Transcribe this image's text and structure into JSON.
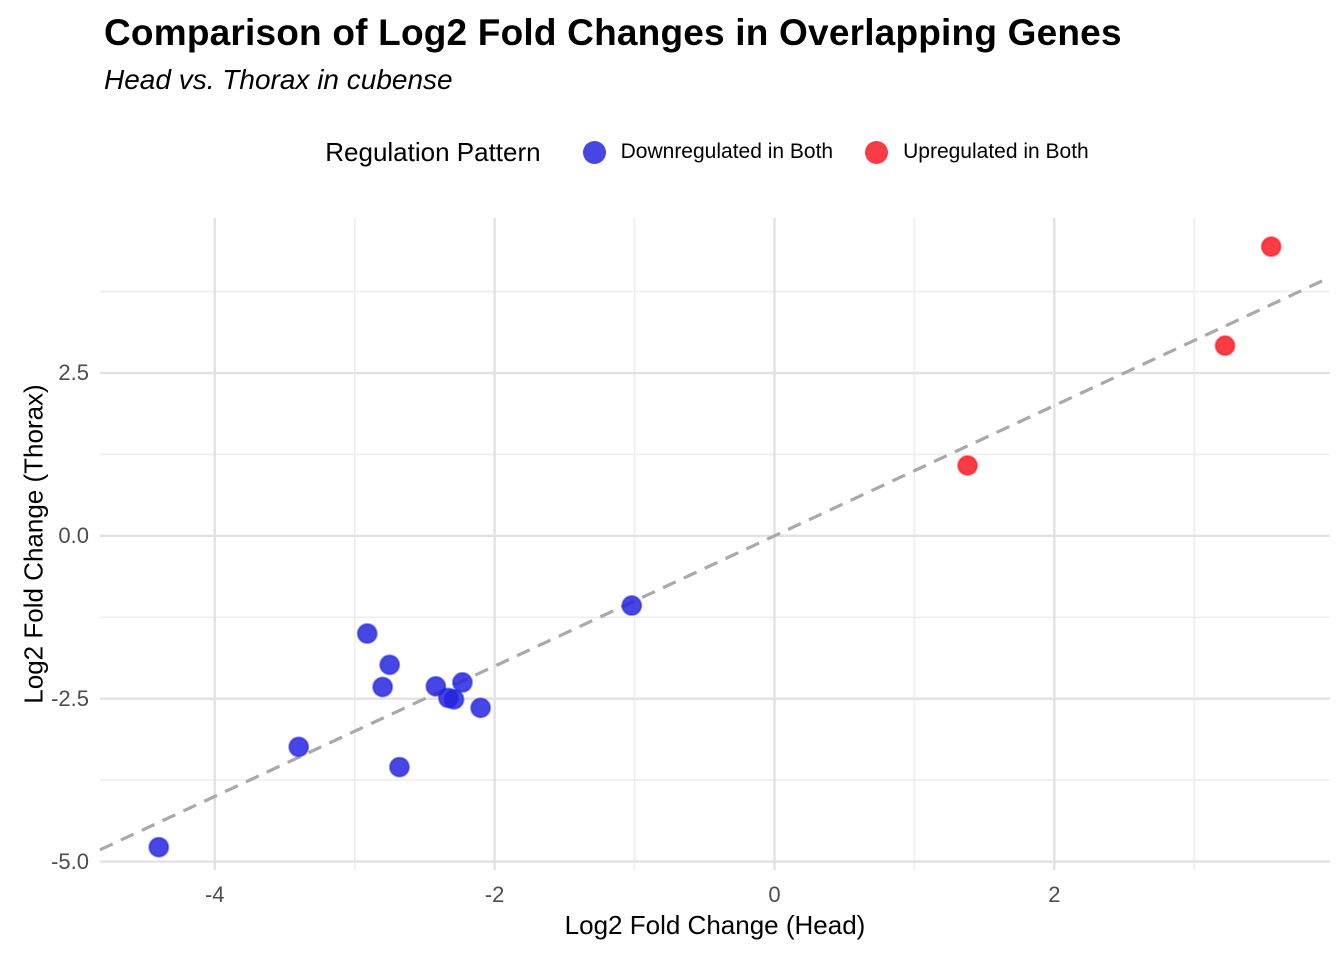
{
  "chart_data": {
    "type": "scatter",
    "title": "Comparison of Log2 Fold Changes in Overlapping Genes",
    "subtitle": "Head vs. Thorax in cubense",
    "xlabel": "Log2 Fold Change (Head)",
    "ylabel": "Log2 Fold Change (Thorax)",
    "xlim": [
      -4.82,
      3.97
    ],
    "ylim": [
      -5.13,
      4.88
    ],
    "grid": true,
    "x_ticks": {
      "values": [
        -4,
        -2,
        0,
        2
      ],
      "labels": [
        "-4",
        "-2",
        "0",
        "2"
      ],
      "minor": [
        -3,
        -1,
        1,
        3
      ]
    },
    "y_ticks": {
      "values": [
        2.5,
        0.0,
        -2.5,
        -5.0
      ],
      "labels": [
        "2.5",
        "0.0",
        "-2.5",
        "-5.0"
      ],
      "minor": [
        3.75,
        1.25,
        -1.25,
        -3.75
      ]
    },
    "legend": {
      "title": "Regulation Pattern",
      "position": "top"
    },
    "reference_line": {
      "type": "identity",
      "equation": "y = x",
      "style": "dashed",
      "color": "#a9a9a9"
    },
    "series": [
      {
        "name": "Downregulated in Both",
        "color": "#2222e0",
        "marker": "circle",
        "points": [
          [
            -4.4,
            -4.78
          ],
          [
            -3.4,
            -3.24
          ],
          [
            -2.91,
            -1.5
          ],
          [
            -2.75,
            -1.98
          ],
          [
            -2.8,
            -2.32
          ],
          [
            -2.68,
            -3.55
          ],
          [
            -2.42,
            -2.31
          ],
          [
            -2.33,
            -2.49
          ],
          [
            -2.29,
            -2.51
          ],
          [
            -2.23,
            -2.25
          ],
          [
            -2.1,
            -2.64
          ],
          [
            -1.02,
            -1.07
          ]
        ]
      },
      {
        "name": "Upregulated in Both",
        "color": "#f71520",
        "marker": "circle",
        "points": [
          [
            1.38,
            1.08
          ],
          [
            3.22,
            2.92
          ],
          [
            3.55,
            4.44
          ]
        ]
      }
    ],
    "style": {
      "point_opacity": 0.84,
      "major_grid_color": "#e2e2e2",
      "minor_grid_color": "#eeeeee",
      "tick_label_color": "#4d4d4d"
    }
  }
}
